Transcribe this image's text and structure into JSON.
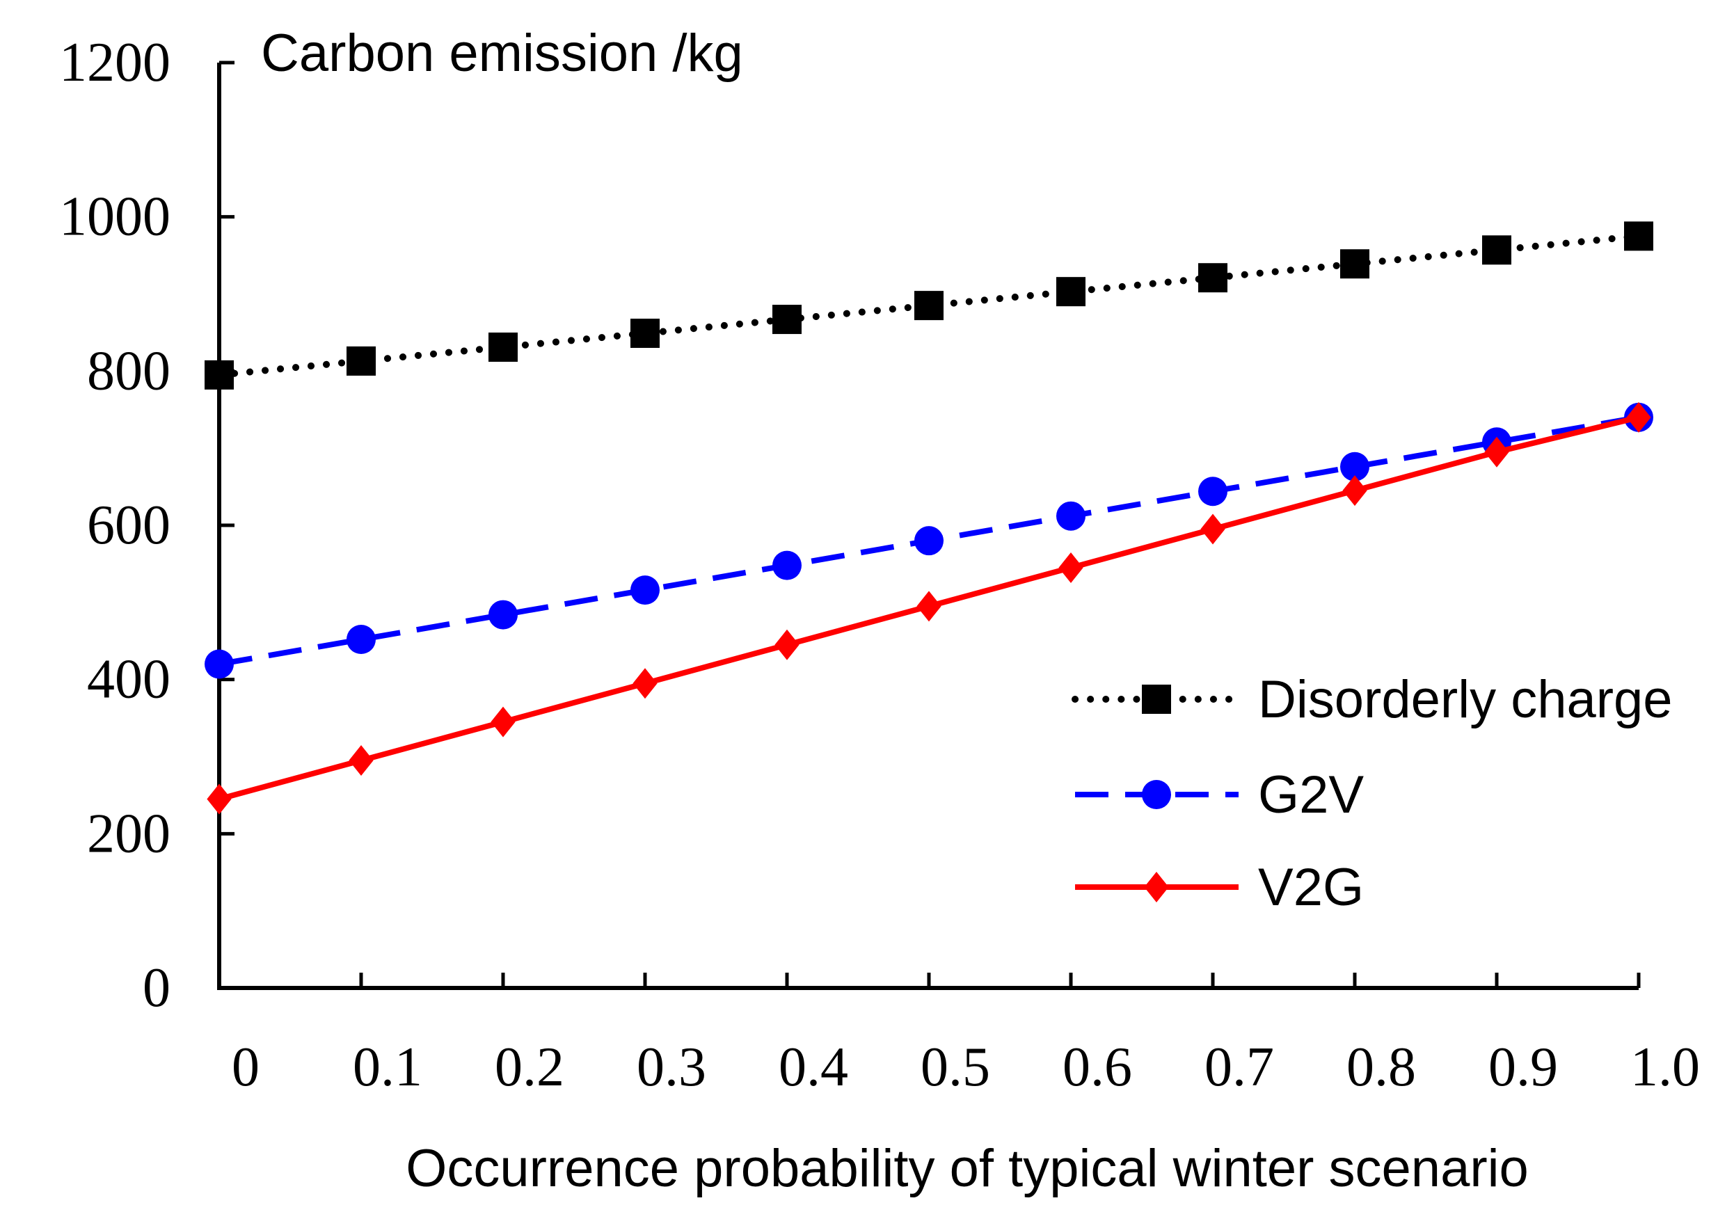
{
  "chart_data": {
    "type": "line",
    "title": "",
    "xlabel": "Occurrence probability of typical winter scenario",
    "ylabel": "Carbon emission /kg",
    "x": [
      0,
      0.1,
      0.2,
      0.3,
      0.4,
      0.5,
      0.6,
      0.7,
      0.8,
      0.9,
      1.0
    ],
    "x_tick_labels": [
      "0",
      "0.1",
      "0.2",
      "0.3",
      "0.4",
      "0.5",
      "0.6",
      "0.7",
      "0.8",
      "0.9",
      "1.0"
    ],
    "ylim": [
      0,
      1200
    ],
    "y_ticks": [
      0,
      200,
      400,
      600,
      800,
      1000,
      1200
    ],
    "y_tick_labels": [
      "0",
      "200",
      "400",
      "600",
      "800",
      "1000",
      "1200"
    ],
    "grid": false,
    "legend_position": "right",
    "series": [
      {
        "name": "Disorderly charge",
        "color": "#000000",
        "line_style": "dotted",
        "marker": "square",
        "values": [
          795,
          813,
          831,
          849,
          867,
          885,
          903,
          921,
          939,
          957,
          975
        ]
      },
      {
        "name": "G2V",
        "color": "#0000ff",
        "line_style": "dashed",
        "marker": "circle",
        "values": [
          420,
          452,
          484,
          516,
          548,
          580,
          612,
          644,
          676,
          708,
          740
        ]
      },
      {
        "name": "V2G",
        "color": "#ff0000",
        "line_style": "solid",
        "marker": "diamond",
        "values": [
          245,
          295,
          345,
          395,
          445,
          495,
          545,
          595,
          645,
          695,
          740
        ]
      }
    ]
  }
}
